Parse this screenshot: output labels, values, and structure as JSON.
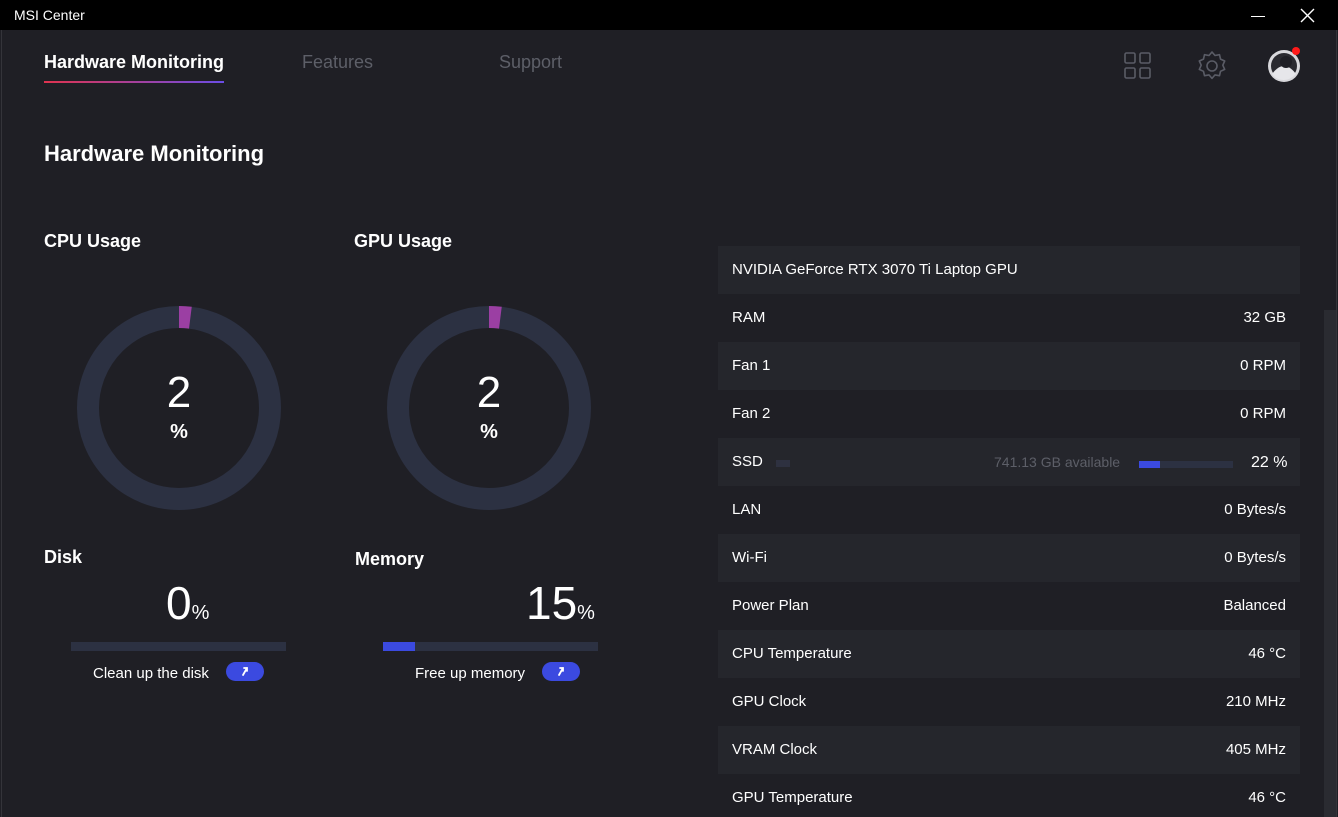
{
  "window": {
    "title": "MSI Center"
  },
  "tabs": [
    {
      "label": "Hardware Monitoring"
    },
    {
      "label": "Features"
    },
    {
      "label": "Support"
    }
  ],
  "page": {
    "title": "Hardware Monitoring"
  },
  "cpu": {
    "title": "CPU Usage",
    "value": "2",
    "unit": "%",
    "usage_fraction": 0.02
  },
  "gpu": {
    "title": "GPU Usage",
    "value": "2",
    "unit": "%",
    "usage_fraction": 0.02
  },
  "disk": {
    "title": "Disk",
    "value": "0",
    "unit": "%",
    "fill_fraction": 0.0,
    "action_label": "Clean up the disk"
  },
  "memory": {
    "title": "Memory",
    "value": "15",
    "unit": "%",
    "fill_fraction": 0.15,
    "action_label": "Free up memory"
  },
  "info": {
    "gpu_name": "NVIDIA GeForce RTX 3070 Ti Laptop GPU",
    "rows": [
      {
        "label": "RAM",
        "value": "32 GB"
      },
      {
        "label": "Fan 1",
        "value": "0 RPM"
      },
      {
        "label": "Fan 2",
        "value": "0 RPM"
      },
      {
        "label": "SSD",
        "value": "22 %",
        "available": "741.13 GB available",
        "fill_fraction": 0.22
      },
      {
        "label": "LAN",
        "value": "0 Bytes/s"
      },
      {
        "label": "Wi-Fi",
        "value": "0 Bytes/s"
      },
      {
        "label": "Power Plan",
        "value": "Balanced"
      },
      {
        "label": "CPU Temperature",
        "value": "46 °C"
      },
      {
        "label": "GPU Clock",
        "value": "210 MHz"
      },
      {
        "label": "VRAM Clock",
        "value": "405 MHz"
      },
      {
        "label": "GPU Temperature",
        "value": "46 °C"
      }
    ]
  },
  "colors": {
    "accent_blue": "#3b4ae0",
    "gauge_track": "#2c3142",
    "gauge_fill": "#9b3fa3",
    "notification": "#ff1a1a"
  },
  "icons": [
    "grid-icon",
    "gear-icon",
    "avatar",
    "close-icon",
    "minimize-icon",
    "arrow-up-icon"
  ]
}
